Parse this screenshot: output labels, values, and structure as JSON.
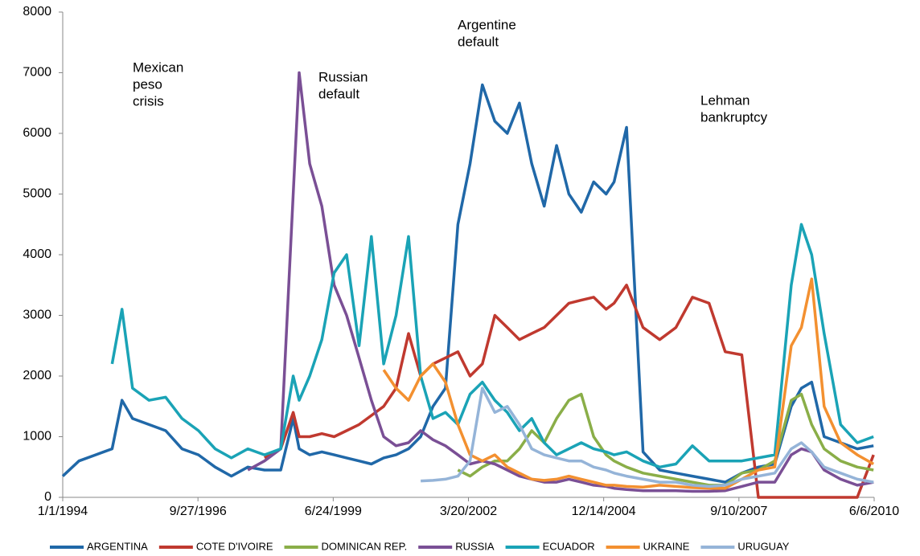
{
  "chart_data": {
    "type": "line",
    "annotations": [
      [
        "Mexican",
        "peso",
        "crisis"
      ],
      [
        "Russian",
        "default"
      ],
      [
        "Argentine",
        "default"
      ],
      [
        "Lehman",
        "bankruptcy"
      ]
    ],
    "x": [
      "1994-01-01",
      "1994-05-01",
      "1994-09-01",
      "1995-01-01",
      "1995-03-15",
      "1995-06-01",
      "1995-10-01",
      "1996-02-01",
      "1996-06-01",
      "1996-10-01",
      "1997-02-01",
      "1997-06-01",
      "1997-10-01",
      "1998-02-01",
      "1998-06-01",
      "1998-09-01",
      "1998-10-15",
      "1999-01-01",
      "1999-04-01",
      "1999-07-01",
      "1999-10-01",
      "2000-01-01",
      "2000-04-01",
      "2000-07-01",
      "2000-10-01",
      "2001-01-01",
      "2001-04-01",
      "2001-07-01",
      "2001-10-01",
      "2002-01-01",
      "2002-04-01",
      "2002-07-01",
      "2002-10-01",
      "2003-01-01",
      "2003-04-01",
      "2003-07-01",
      "2003-10-01",
      "2004-01-01",
      "2004-04-01",
      "2004-07-01",
      "2004-10-01",
      "2005-01-01",
      "2005-03-01",
      "2005-06-01",
      "2005-10-01",
      "2006-02-01",
      "2006-06-01",
      "2006-10-01",
      "2007-02-01",
      "2007-06-01",
      "2007-10-01",
      "2008-02-01",
      "2008-06-01",
      "2008-10-01",
      "2008-12-15",
      "2009-03-01",
      "2009-06-01",
      "2009-10-01",
      "2010-02-01",
      "2010-06-01"
    ],
    "series": [
      {
        "name": "ARGENTINA",
        "color": "#2068a8",
        "values": [
          350,
          600,
          700,
          800,
          1600,
          1300,
          1200,
          1100,
          800,
          700,
          500,
          350,
          500,
          450,
          450,
          1300,
          800,
          700,
          750,
          700,
          650,
          600,
          550,
          650,
          700,
          800,
          1000,
          1500,
          1800,
          4500,
          5500,
          6800,
          6200,
          6000,
          6500,
          5500,
          4800,
          5800,
          5000,
          4700,
          5200,
          5000,
          5200,
          6100,
          750,
          450,
          400,
          350,
          300,
          250,
          400,
          500,
          550,
          1500,
          1800,
          1900,
          1000,
          900,
          800,
          850
        ]
      },
      {
        "name": "COTE D'IVOIRE",
        "color": "#c0392f",
        "values": [
          null,
          null,
          null,
          null,
          null,
          null,
          null,
          null,
          null,
          null,
          null,
          null,
          null,
          650,
          800,
          1400,
          1000,
          1000,
          1050,
          1000,
          1100,
          1200,
          1350,
          1500,
          1800,
          2700,
          2000,
          2200,
          2300,
          2400,
          2000,
          2200,
          3000,
          2800,
          2600,
          2700,
          2800,
          3000,
          3200,
          3250,
          3300,
          3100,
          3200,
          3500,
          2800,
          2600,
          2800,
          3300,
          3200,
          2400,
          2350,
          0,
          0,
          0,
          0,
          0,
          0,
          0,
          0,
          700
        ]
      },
      {
        "name": "DOMINICAN REP.",
        "color": "#8aae48",
        "values": [
          null,
          null,
          null,
          null,
          null,
          null,
          null,
          null,
          null,
          null,
          null,
          null,
          null,
          null,
          null,
          null,
          null,
          null,
          null,
          null,
          null,
          null,
          null,
          null,
          null,
          null,
          null,
          null,
          null,
          450,
          350,
          500,
          600,
          600,
          800,
          1100,
          900,
          1300,
          1600,
          1700,
          1000,
          700,
          600,
          500,
          400,
          350,
          300,
          250,
          200,
          200,
          400,
          450,
          600,
          1600,
          1700,
          1200,
          800,
          600,
          500,
          450
        ]
      },
      {
        "name": "RUSSIA",
        "color": "#7a4f95",
        "values": [
          null,
          null,
          null,
          null,
          null,
          null,
          null,
          null,
          null,
          null,
          null,
          null,
          450,
          600,
          800,
          5000,
          7000,
          5500,
          4800,
          3500,
          3000,
          2300,
          1600,
          1000,
          850,
          900,
          1100,
          950,
          850,
          700,
          550,
          600,
          550,
          450,
          350,
          300,
          250,
          250,
          300,
          250,
          200,
          180,
          150,
          130,
          110,
          110,
          110,
          100,
          100,
          110,
          180,
          250,
          250,
          700,
          800,
          750,
          450,
          300,
          200,
          250
        ]
      },
      {
        "name": "ECUADOR",
        "color": "#1aa3b6",
        "values": [
          null,
          null,
          null,
          2200,
          3100,
          1800,
          1600,
          1650,
          1300,
          1100,
          800,
          650,
          800,
          700,
          800,
          2000,
          1600,
          2000,
          2600,
          3700,
          4000,
          2500,
          4300,
          2200,
          3000,
          4300,
          2000,
          1300,
          1400,
          1200,
          1700,
          1900,
          1600,
          1400,
          1100,
          1300,
          900,
          700,
          800,
          900,
          800,
          750,
          700,
          750,
          600,
          500,
          550,
          850,
          600,
          600,
          600,
          650,
          700,
          3500,
          4500,
          4000,
          2700,
          1200,
          900,
          1000
        ]
      },
      {
        "name": "UKRAINE",
        "color": "#f39030",
        "values": [
          null,
          null,
          null,
          null,
          null,
          null,
          null,
          null,
          null,
          null,
          null,
          null,
          null,
          null,
          null,
          null,
          null,
          null,
          null,
          null,
          null,
          null,
          null,
          2100,
          1800,
          1600,
          2000,
          2200,
          1900,
          1200,
          700,
          600,
          700,
          500,
          400,
          300,
          280,
          300,
          350,
          300,
          250,
          200,
          200,
          180,
          170,
          200,
          180,
          160,
          150,
          150,
          300,
          450,
          500,
          2500,
          2800,
          3600,
          1500,
          900,
          700,
          550
        ]
      },
      {
        "name": "URUGUAY",
        "color": "#95b4d8",
        "values": [
          null,
          null,
          null,
          null,
          null,
          null,
          null,
          null,
          null,
          null,
          null,
          null,
          null,
          null,
          null,
          null,
          null,
          null,
          null,
          null,
          null,
          null,
          null,
          null,
          null,
          null,
          270,
          280,
          300,
          350,
          600,
          1800,
          1400,
          1500,
          1200,
          800,
          700,
          650,
          600,
          600,
          500,
          450,
          400,
          350,
          300,
          250,
          250,
          200,
          180,
          200,
          300,
          350,
          400,
          800,
          900,
          750,
          500,
          400,
          300,
          250
        ]
      }
    ],
    "xlim": [
      "1994-01-01",
      "2010-06-06"
    ],
    "xticks": [
      {
        "value": "1994-01-01",
        "label": "1/1/1994"
      },
      {
        "value": "1996-09-27",
        "label": "9/27/1996"
      },
      {
        "value": "1999-06-24",
        "label": "6/24/1999"
      },
      {
        "value": "2002-03-20",
        "label": "3/20/2002"
      },
      {
        "value": "2004-12-14",
        "label": "12/14/2004"
      },
      {
        "value": "2007-09-10",
        "label": "9/10/2007"
      },
      {
        "value": "2010-06-06",
        "label": "6/6/2010"
      }
    ],
    "ylim": [
      0,
      8000
    ],
    "yticks": [
      0,
      1000,
      2000,
      3000,
      4000,
      5000,
      6000,
      7000,
      8000
    ],
    "legend": "bottom"
  }
}
